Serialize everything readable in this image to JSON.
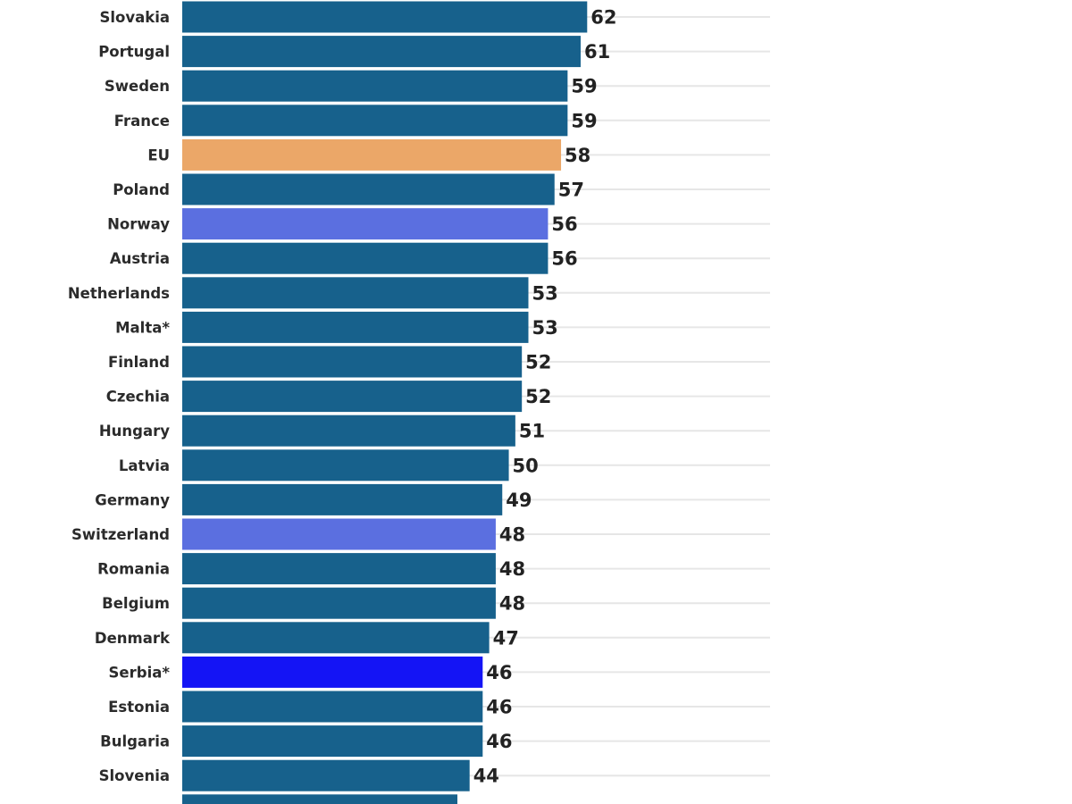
{
  "chart_data": {
    "type": "bar",
    "orientation": "horizontal",
    "categories": [
      "Slovakia",
      "Portugal",
      "Sweden",
      "France",
      "EU",
      "Poland",
      "Norway",
      "Austria",
      "Netherlands",
      "Malta*",
      "Finland",
      "Czechia",
      "Hungary",
      "Latvia",
      "Germany",
      "Switzerland",
      "Romania",
      "Belgium",
      "Denmark",
      "Serbia*",
      "Estonia",
      "Bulgaria",
      "Slovenia"
    ],
    "values": [
      62,
      61,
      59,
      59,
      58,
      57,
      56,
      56,
      53,
      53,
      52,
      52,
      51,
      50,
      49,
      48,
      48,
      48,
      47,
      46,
      46,
      46,
      44
    ],
    "highlight": {
      "EU": "#eba768",
      "Norway": "#5b6fe0",
      "Switzerland": "#5b6fe0",
      "Serbia*": "#1414f5"
    },
    "colors": {
      "default": "#17618c",
      "gridline": "#e6e6e6"
    },
    "title": "",
    "xlabel": "",
    "ylabel": "",
    "xlim": [
      0,
      90
    ],
    "grid": true,
    "truncated_bottom_bar": true
  }
}
